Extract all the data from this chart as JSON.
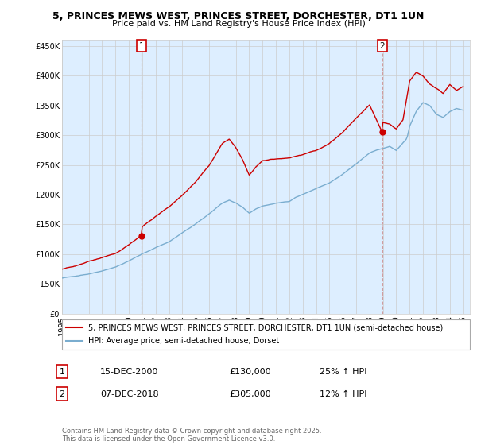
{
  "title": "5, PRINCES MEWS WEST, PRINCES STREET, DORCHESTER, DT1 1UN",
  "subtitle": "Price paid vs. HM Land Registry's House Price Index (HPI)",
  "legend_line1": "5, PRINCES MEWS WEST, PRINCES STREET, DORCHESTER, DT1 1UN (semi-detached house)",
  "legend_line2": "HPI: Average price, semi-detached house, Dorset",
  "annotation1_date": "15-DEC-2000",
  "annotation1_price": "£130,000",
  "annotation1_hpi": "25% ↑ HPI",
  "annotation2_date": "07-DEC-2018",
  "annotation2_price": "£305,000",
  "annotation2_hpi": "12% ↑ HPI",
  "red_color": "#cc0000",
  "blue_color": "#7aadcf",
  "fill_color": "#ddeeff",
  "footer": "Contains HM Land Registry data © Crown copyright and database right 2025.\nThis data is licensed under the Open Government Licence v3.0.",
  "background_color": "#ffffff",
  "grid_color": "#cccccc",
  "hpi_key_x": [
    1995,
    1996,
    1997,
    1998,
    1999,
    2000,
    2001,
    2002,
    2003,
    2004,
    2005,
    2006,
    2007,
    2007.5,
    2008,
    2008.5,
    2009,
    2009.5,
    2010,
    2011,
    2012,
    2012.5,
    2013,
    2014,
    2015,
    2016,
    2017,
    2018,
    2018.5,
    2019,
    2019.5,
    2020,
    2020.3,
    2020.8,
    2021,
    2021.5,
    2022,
    2022.5,
    2023,
    2023.5,
    2024,
    2024.5,
    2025
  ],
  "hpi_key_y": [
    60000,
    63000,
    67000,
    72000,
    78000,
    88000,
    100000,
    110000,
    120000,
    135000,
    150000,
    168000,
    185000,
    190000,
    185000,
    178000,
    168000,
    175000,
    180000,
    185000,
    188000,
    195000,
    200000,
    210000,
    220000,
    235000,
    252000,
    270000,
    275000,
    278000,
    282000,
    275000,
    282000,
    295000,
    315000,
    340000,
    355000,
    350000,
    335000,
    330000,
    340000,
    345000,
    342000
  ],
  "red_key_x": [
    1995,
    1996,
    1997,
    1998,
    1999,
    2000,
    2000.95,
    2001,
    2002,
    2003,
    2004,
    2005,
    2006,
    2007,
    2007.5,
    2008,
    2008.5,
    2009,
    2009.5,
    2010,
    2011,
    2012,
    2013,
    2014,
    2015,
    2016,
    2017,
    2018,
    2018.92,
    2019,
    2019.5,
    2020,
    2020.5,
    2021,
    2021.5,
    2022,
    2022.5,
    2023,
    2023.5,
    2024,
    2024.5,
    2025
  ],
  "red_key_y": [
    75000,
    80000,
    87000,
    93000,
    100000,
    115000,
    130000,
    145000,
    162000,
    178000,
    198000,
    220000,
    248000,
    285000,
    292000,
    278000,
    258000,
    232000,
    245000,
    255000,
    258000,
    260000,
    265000,
    272000,
    285000,
    305000,
    328000,
    350000,
    305000,
    320000,
    318000,
    310000,
    325000,
    390000,
    405000,
    398000,
    385000,
    378000,
    370000,
    385000,
    375000,
    382000
  ]
}
